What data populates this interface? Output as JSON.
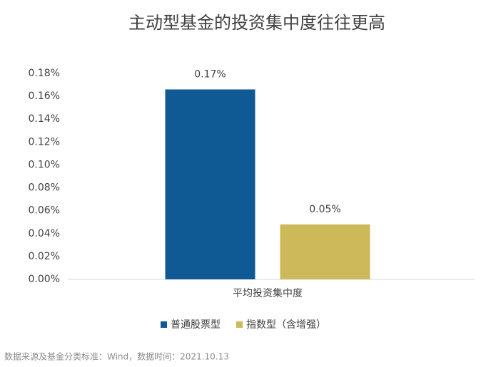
{
  "chart_data": {
    "type": "bar",
    "title": "主动型基金的投资集中度往往更高",
    "categories": [
      "平均投资集中度"
    ],
    "series": [
      {
        "name": "普通股票型",
        "color": "#0f5a94",
        "values": [
          0.166
        ],
        "value_labels": [
          "0.17%"
        ]
      },
      {
        "name": "指数型（含增强）",
        "color": "#cdb85a",
        "values": [
          0.048
        ],
        "value_labels": [
          "0.05%"
        ]
      }
    ],
    "ylim": [
      0,
      0.18
    ],
    "yticks": [
      {
        "value": 0,
        "label": "0.00%"
      },
      {
        "value": 0.02,
        "label": "0.02%"
      },
      {
        "value": 0.04,
        "label": "0.04%"
      },
      {
        "value": 0.06,
        "label": "0.06%"
      },
      {
        "value": 0.08,
        "label": "0.08%"
      },
      {
        "value": 0.1,
        "label": "0.10%"
      },
      {
        "value": 0.12,
        "label": "0.12%"
      },
      {
        "value": 0.14,
        "label": "0.14%"
      },
      {
        "value": 0.16,
        "label": "0.16%"
      },
      {
        "value": 0.18,
        "label": "0.18%"
      }
    ],
    "legend": "bottom",
    "source": "数据来源及基金分类标准：Wind，数据时间：2021.10.13"
  }
}
